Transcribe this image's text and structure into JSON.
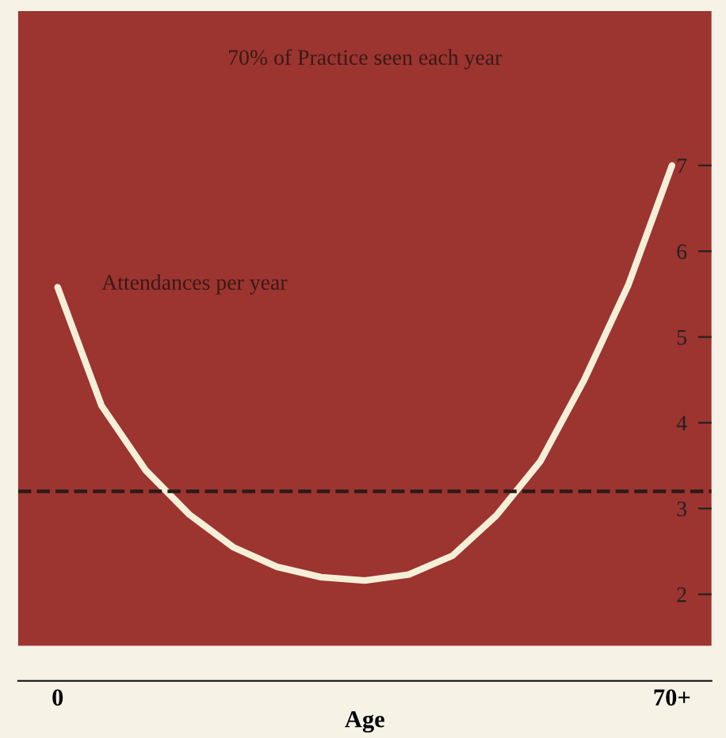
{
  "chart_data": {
    "type": "line",
    "annotations": [
      "70% of Practice seen each year"
    ],
    "xlabel": "Age",
    "categories": [
      "0",
      null,
      null,
      null,
      null,
      null,
      null,
      null,
      null,
      null,
      null,
      null,
      null,
      null,
      "70+"
    ],
    "series": [
      {
        "name": "Attendances per year",
        "color": "#f6efd8",
        "values": [
          5.58,
          4.2,
          3.45,
          2.93,
          2.55,
          2.32,
          2.2,
          2.16,
          2.23,
          2.45,
          2.92,
          3.55,
          4.5,
          5.6,
          7.0
        ]
      }
    ],
    "ylim": [
      1.4,
      8.8
    ],
    "yticks": [
      2,
      3,
      4,
      5,
      6,
      7
    ],
    "ref_lines": [
      {
        "axis": "y",
        "value": 3.2,
        "color": "#2a1a18",
        "line_style": "dashed"
      }
    ],
    "grid": false,
    "legend": false,
    "marker": "none",
    "line_style": "solid"
  }
}
